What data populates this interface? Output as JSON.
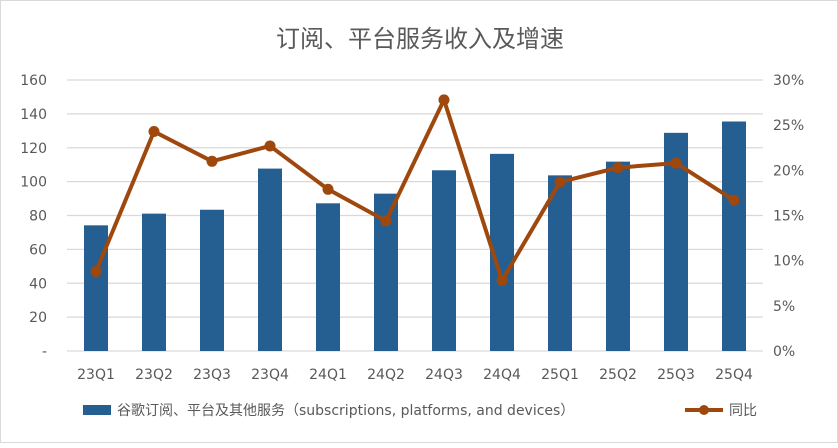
{
  "chart_data": {
    "type": "bar+line",
    "title": "订阅、平台服务收入及增速",
    "categories": [
      "23Q1",
      "23Q2",
      "23Q3",
      "23Q4",
      "24Q1",
      "24Q2",
      "24Q3",
      "24Q4",
      "25Q1",
      "25Q2",
      "25Q3",
      "25Q4"
    ],
    "series": [
      {
        "name": "谷歌订阅、平台及其他服务（subscriptions, platforms, and devices）",
        "type": "bar",
        "axis": "left",
        "color": "#255e91",
        "values": [
          74.2,
          81.1,
          83.4,
          107.7,
          87.2,
          92.9,
          106.7,
          116.4,
          103.7,
          111.8,
          128.8,
          135.5
        ]
      },
      {
        "name": "同比",
        "type": "line",
        "axis": "right",
        "color": "#9e480e",
        "values": [
          8.8,
          24.3,
          21.0,
          22.7,
          17.9,
          14.4,
          27.8,
          7.8,
          18.7,
          20.3,
          20.8,
          16.7
        ]
      }
    ],
    "left_axis": {
      "ylim": [
        0,
        160
      ],
      "ticks": [
        "-",
        "20",
        "40",
        "60",
        "80",
        "100",
        "120",
        "140",
        "160"
      ]
    },
    "right_axis": {
      "ylim": [
        0,
        30
      ],
      "ticks": [
        "0%",
        "5%",
        "10%",
        "15%",
        "20%",
        "25%",
        "30%"
      ]
    },
    "grid": true,
    "legend": "bottom"
  }
}
